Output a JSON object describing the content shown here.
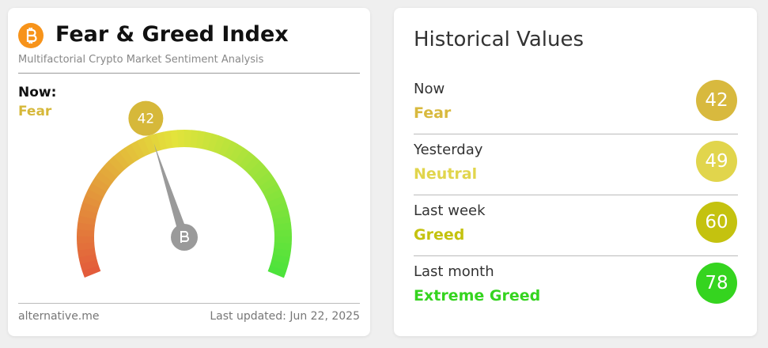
{
  "gauge": {
    "title": "Fear & Greed Index",
    "subtitle": "Multifactorial Crypto Market Sentiment Analysis",
    "now_label": "Now:",
    "classification": "Fear",
    "value": 42,
    "color": "#d6b83a",
    "source": "alternative.me",
    "updated": "Last updated: Jun 22, 2025"
  },
  "history": {
    "title": "Historical Values",
    "rows": [
      {
        "period": "Now",
        "classification": "Fear",
        "value": 42,
        "color": "#d8b93e"
      },
      {
        "period": "Yesterday",
        "classification": "Neutral",
        "value": 49,
        "color": "#e1d54c"
      },
      {
        "period": "Last week",
        "classification": "Greed",
        "value": 60,
        "color": "#c4c20f"
      },
      {
        "period": "Last month",
        "classification": "Extreme Greed",
        "value": 78,
        "color": "#35d41f"
      }
    ]
  }
}
